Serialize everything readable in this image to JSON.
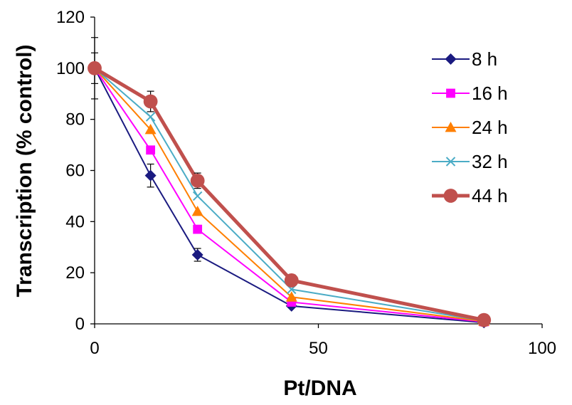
{
  "chart_data": {
    "type": "line",
    "xlabel": "Pt/DNA",
    "ylabel": "Transcription (% control)",
    "xlim": [
      0,
      100
    ],
    "ylim": [
      0,
      120
    ],
    "xticks": [
      0,
      50,
      100
    ],
    "yticks": [
      0,
      20,
      40,
      60,
      80,
      100,
      120
    ],
    "grid": false,
    "legend_position": "right",
    "series": [
      {
        "name": "8 h",
        "color": "#1a1a80",
        "marker": "diamond",
        "x": [
          0,
          12.5,
          23,
          44,
          87
        ],
        "y": [
          100,
          58,
          27,
          7,
          0.5
        ],
        "err": [
          6,
          4.5,
          2.5,
          0,
          0
        ]
      },
      {
        "name": "16 h",
        "color": "#ff00ff",
        "marker": "square",
        "x": [
          0,
          12.5,
          23,
          44,
          87
        ],
        "y": [
          100,
          68,
          37,
          8.5,
          0.8
        ],
        "err": [
          0,
          0,
          0,
          0,
          0
        ]
      },
      {
        "name": "24 h",
        "color": "#ff7f00",
        "marker": "triangle",
        "x": [
          0,
          12.5,
          23,
          44,
          87
        ],
        "y": [
          100,
          76,
          44,
          10.5,
          1
        ],
        "err": [
          0,
          0,
          0,
          0,
          0
        ]
      },
      {
        "name": "32 h",
        "color": "#4bacc6",
        "marker": "x",
        "x": [
          0,
          12.5,
          23,
          44,
          87
        ],
        "y": [
          100,
          81,
          50,
          13.5,
          1.2
        ],
        "err": [
          0,
          0,
          0,
          0,
          0
        ]
      },
      {
        "name": "44 h",
        "color": "#c0504d",
        "marker": "circle",
        "x": [
          0,
          12.5,
          23,
          44,
          87
        ],
        "y": [
          100,
          87,
          56,
          17,
          1.5
        ],
        "err": [
          12,
          4,
          3,
          0,
          0
        ]
      }
    ]
  }
}
